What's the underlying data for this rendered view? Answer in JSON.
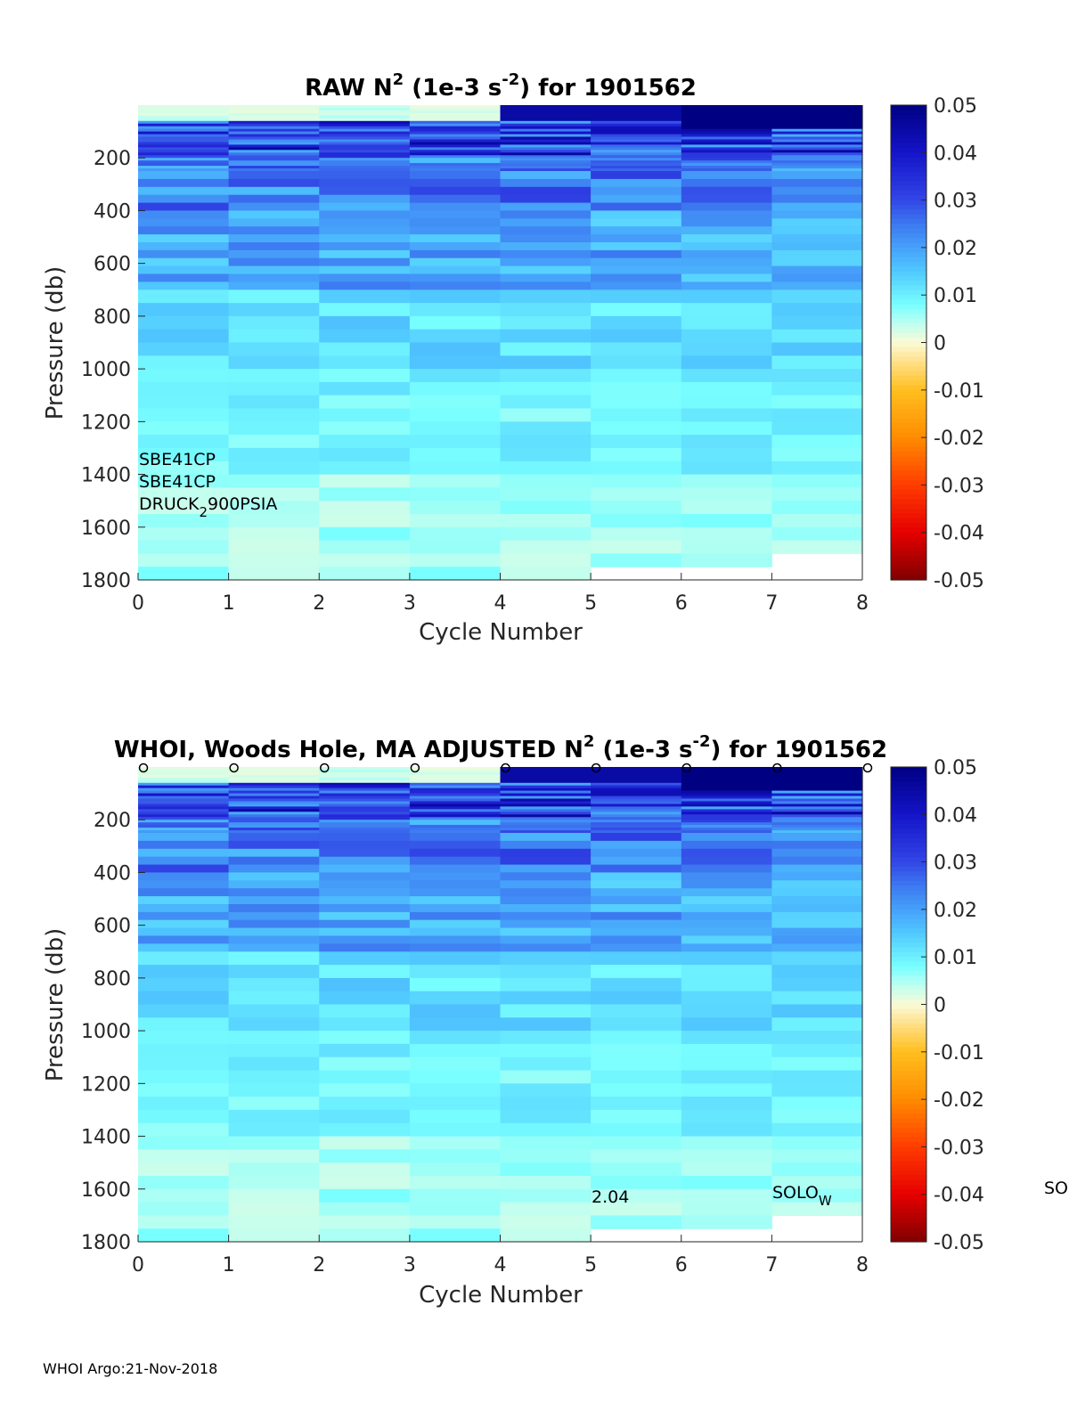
{
  "chart_data": [
    {
      "type": "heatmap",
      "id": "raw",
      "title_parts": [
        "RAW N",
        "2",
        " (1e-3 s",
        "-2",
        ") for 1901562"
      ],
      "xlabel": "Cycle Number",
      "ylabel": "Pressure (db)",
      "xlim": [
        0,
        8
      ],
      "ylim": [
        1800,
        0
      ],
      "xticks": [
        0,
        1,
        2,
        3,
        4,
        5,
        6,
        7,
        8
      ],
      "yticks": [
        200,
        400,
        600,
        800,
        1000,
        1200,
        1400,
        1600,
        1800
      ],
      "max_pressure": [
        1800,
        1800,
        1800,
        1800,
        1800,
        1750,
        1750,
        1700
      ],
      "colorbar": {
        "clim": [
          -0.05,
          0.05
        ],
        "ticks": [
          "0.05",
          "0.04",
          "0.03",
          "0.02",
          "0.01",
          "0",
          "-0.01",
          "-0.02",
          "-0.03",
          "-0.04",
          "-0.05"
        ]
      },
      "annotations": [
        "SBE41CP",
        "SBE41CP",
        "DRUCK",
        "2",
        "900PSIA"
      ],
      "seed": 11
    },
    {
      "type": "heatmap",
      "id": "adjusted",
      "title_parts": [
        "WHOI, Woods Hole, MA  ADJUSTED N",
        "2",
        " (1e-3 s",
        "-2",
        ") for 1901562"
      ],
      "xlabel": "Cycle Number",
      "ylabel": "Pressure (db)",
      "xlim": [
        0,
        8
      ],
      "ylim": [
        1800,
        0
      ],
      "xticks": [
        0,
        1,
        2,
        3,
        4,
        5,
        6,
        7,
        8
      ],
      "yticks": [
        200,
        400,
        600,
        800,
        1000,
        1200,
        1400,
        1600,
        1800
      ],
      "max_pressure": [
        1800,
        1800,
        1800,
        1800,
        1800,
        1750,
        1750,
        1700
      ],
      "colorbar": {
        "clim": [
          -0.05,
          0.05
        ],
        "ticks": [
          "0.05",
          "0.04",
          "0.03",
          "0.02",
          "0.01",
          "0",
          "-0.01",
          "-0.02",
          "-0.03",
          "-0.04",
          "-0.05"
        ]
      },
      "annotations": [
        "2.04",
        "SOLO",
        "W",
        "SO"
      ],
      "markers": {
        "symbol": "o",
        "cycles": [
          0,
          1,
          2,
          3,
          4,
          5,
          6,
          7,
          8
        ]
      },
      "seed": 11
    }
  ],
  "footer": "WHOI Argo:21-Nov-2018"
}
